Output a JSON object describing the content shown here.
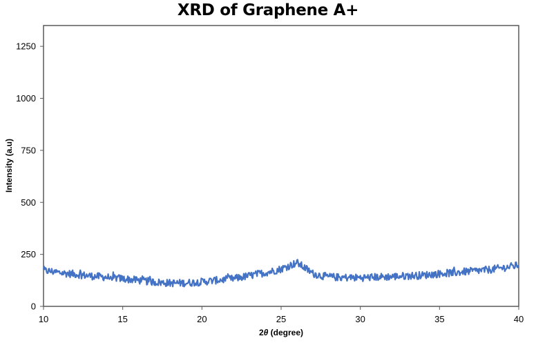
{
  "chart_data": {
    "type": "line",
    "title": "XRD of Graphene A+",
    "xlabel": "2θ (degree)",
    "xlabel_parts": {
      "prefix": "2",
      "symbol": "θ",
      "suffix": " (degree)"
    },
    "ylabel": "Intensity (a.u)",
    "xlim": [
      10,
      40
    ],
    "ylim": [
      0,
      1350
    ],
    "x_ticks": [
      10,
      15,
      20,
      25,
      30,
      35,
      40
    ],
    "y_ticks": [
      0,
      250,
      500,
      750,
      1000,
      1250
    ],
    "grid": false,
    "legend": null,
    "line_color": "#4472C4",
    "noise_amplitude": 18,
    "series": [
      {
        "name": "Graphene A+",
        "x": [
          10,
          10.5,
          11,
          11.5,
          12,
          12.5,
          13,
          13.5,
          14,
          14.5,
          15,
          15.5,
          16,
          16.5,
          17,
          17.5,
          18,
          18.5,
          19,
          19.5,
          20,
          20.5,
          21,
          21.5,
          22,
          22.5,
          23,
          23.5,
          24,
          24.5,
          25,
          25.5,
          26,
          26.5,
          27,
          27.5,
          28,
          28.5,
          29,
          29.5,
          30,
          30.5,
          31,
          31.5,
          32,
          32.5,
          33,
          33.5,
          34,
          34.5,
          35,
          35.5,
          36,
          36.5,
          37,
          37.5,
          38,
          38.5,
          39,
          39.5,
          40
        ],
        "y": [
          172,
          168,
          162,
          158,
          155,
          150,
          146,
          143,
          140,
          137,
          133,
          129,
          125,
          121,
          117,
          114,
          112,
          112,
          113,
          115,
          118,
          122,
          126,
          129,
          133,
          140,
          147,
          155,
          162,
          170,
          180,
          195,
          210,
          185,
          158,
          148,
          142,
          140,
          139,
          138,
          138,
          139,
          141,
          142,
          143,
          145,
          147,
          148,
          150,
          154,
          157,
          160,
          162,
          166,
          169,
          172,
          175,
          180,
          185,
          191,
          198
        ]
      }
    ]
  }
}
